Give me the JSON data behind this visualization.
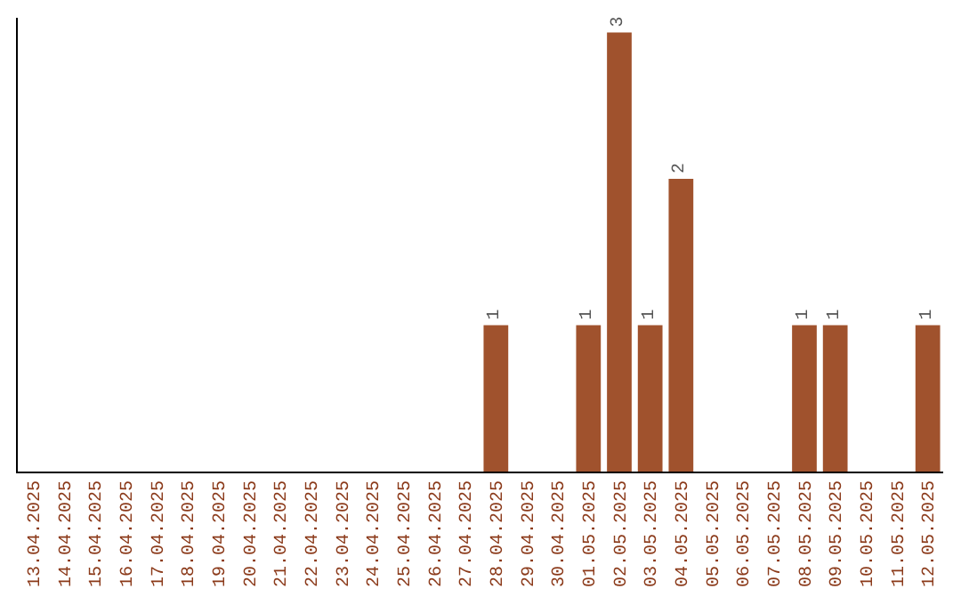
{
  "chart_data": {
    "type": "bar",
    "categories": [
      "13.04.2025",
      "14.04.2025",
      "15.04.2025",
      "16.04.2025",
      "17.04.2025",
      "18.04.2025",
      "19.04.2025",
      "20.04.2025",
      "21.04.2025",
      "22.04.2025",
      "23.04.2025",
      "24.04.2025",
      "25.04.2025",
      "26.04.2025",
      "27.04.2025",
      "28.04.2025",
      "29.04.2025",
      "30.04.2025",
      "01.05.2025",
      "02.05.2025",
      "03.05.2025",
      "04.05.2025",
      "05.05.2025",
      "06.05.2025",
      "07.05.2025",
      "08.05.2025",
      "09.05.2025",
      "10.05.2025",
      "11.05.2025",
      "12.05.2025"
    ],
    "values": [
      null,
      null,
      null,
      null,
      null,
      null,
      null,
      null,
      null,
      null,
      null,
      null,
      null,
      null,
      null,
      1,
      null,
      null,
      1,
      3,
      1,
      2,
      null,
      null,
      null,
      1,
      1,
      null,
      null,
      1
    ],
    "data_labels": true,
    "color": "#a0522d",
    "ylim": [
      0,
      3.1
    ],
    "tick_labels": "x"
  }
}
